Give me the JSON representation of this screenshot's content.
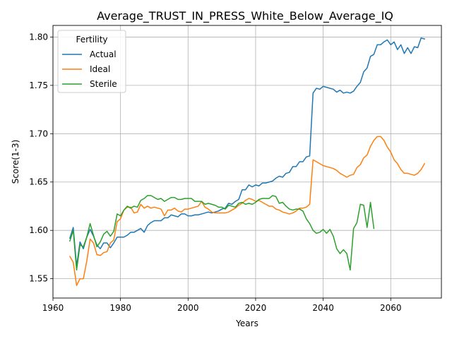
{
  "chart_data": {
    "type": "line",
    "title": "Average_TRUST_IN_PRESS_White_Below_Average_IQ",
    "xlabel": "Years",
    "ylabel": "Score(1-3)",
    "xlim": [
      1960,
      2075
    ],
    "ylim": [
      1.53,
      1.812
    ],
    "xticks": [
      1960,
      1980,
      2000,
      2020,
      2040,
      2060
    ],
    "yticks": [
      1.55,
      1.6,
      1.65,
      1.7,
      1.75,
      1.8
    ],
    "ytick_labels": [
      "1.55",
      "1.60",
      "1.65",
      "1.70",
      "1.75",
      "1.80"
    ],
    "grid": true,
    "legend": {
      "title": "Fertility",
      "placement": "top-left"
    },
    "series": [
      {
        "name": "Actual",
        "color": "#1f77b4",
        "x": [
          1965,
          1966,
          1967,
          1968,
          1969,
          1970,
          1971,
          1972,
          1973,
          1974,
          1975,
          1976,
          1977,
          1978,
          1979,
          1980,
          1981,
          1982,
          1983,
          1984,
          1985,
          1986,
          1987,
          1988,
          1989,
          1990,
          1991,
          1992,
          1993,
          1994,
          1995,
          1996,
          1997,
          1998,
          1999,
          2000,
          2001,
          2002,
          2003,
          2004,
          2005,
          2006,
          2007,
          2008,
          2009,
          2010,
          2011,
          2012,
          2013,
          2014,
          2015,
          2016,
          2017,
          2018,
          2019,
          2020,
          2021,
          2022,
          2023,
          2024,
          2025,
          2026,
          2027,
          2028,
          2029,
          2030,
          2031,
          2032,
          2033,
          2034,
          2035,
          2036,
          2037,
          2038,
          2039,
          2040,
          2041,
          2042,
          2043,
          2044,
          2045,
          2046,
          2047,
          2048,
          2049,
          2050,
          2051,
          2052,
          2053,
          2054,
          2055,
          2056,
          2057,
          2058,
          2059,
          2060,
          2061,
          2062,
          2063,
          2064,
          2065,
          2066,
          2067,
          2068,
          2069,
          2070
        ],
        "y": [
          1.592,
          1.603,
          1.563,
          1.588,
          1.581,
          1.593,
          1.601,
          1.594,
          1.585,
          1.581,
          1.587,
          1.587,
          1.582,
          1.587,
          1.593,
          1.593,
          1.593,
          1.595,
          1.598,
          1.598,
          1.6,
          1.602,
          1.598,
          1.605,
          1.608,
          1.61,
          1.61,
          1.61,
          1.613,
          1.613,
          1.616,
          1.615,
          1.614,
          1.617,
          1.617,
          1.615,
          1.615,
          1.616,
          1.616,
          1.617,
          1.618,
          1.619,
          1.618,
          1.619,
          1.62,
          1.622,
          1.623,
          1.628,
          1.627,
          1.63,
          1.632,
          1.642,
          1.642,
          1.647,
          1.645,
          1.647,
          1.646,
          1.649,
          1.649,
          1.65,
          1.651,
          1.654,
          1.656,
          1.655,
          1.659,
          1.66,
          1.666,
          1.666,
          1.671,
          1.671,
          1.676,
          1.677,
          1.742,
          1.747,
          1.746,
          1.749,
          1.748,
          1.747,
          1.746,
          1.743,
          1.745,
          1.742,
          1.743,
          1.742,
          1.744,
          1.749,
          1.753,
          1.764,
          1.768,
          1.78,
          1.782,
          1.792,
          1.792,
          1.795,
          1.797,
          1.792,
          1.795,
          1.787,
          1.792,
          1.783,
          1.789,
          1.783,
          1.79,
          1.789,
          1.799,
          1.798
        ]
      },
      {
        "name": "Ideal",
        "color": "#ff7f0e",
        "x": [
          1965,
          1966,
          1967,
          1968,
          1969,
          1970,
          1971,
          1972,
          1973,
          1974,
          1975,
          1976,
          1977,
          1978,
          1979,
          1980,
          1981,
          1982,
          1983,
          1984,
          1985,
          1986,
          1987,
          1988,
          1989,
          1990,
          1991,
          1992,
          1993,
          1994,
          1995,
          1996,
          1997,
          1998,
          1999,
          2000,
          2001,
          2002,
          2003,
          2004,
          2005,
          2006,
          2007,
          2008,
          2009,
          2010,
          2011,
          2012,
          2013,
          2014,
          2015,
          2016,
          2017,
          2018,
          2019,
          2020,
          2021,
          2022,
          2023,
          2024,
          2025,
          2026,
          2027,
          2028,
          2029,
          2030,
          2031,
          2032,
          2033,
          2034,
          2035,
          2036,
          2037,
          2038,
          2039,
          2040,
          2041,
          2042,
          2043,
          2044,
          2045,
          2046,
          2047,
          2048,
          2049,
          2050,
          2051,
          2052,
          2053,
          2054,
          2055,
          2056,
          2057,
          2058,
          2059,
          2060,
          2061,
          2062,
          2063,
          2064,
          2065,
          2066,
          2067,
          2068,
          2069,
          2070
        ],
        "y": [
          1.573,
          1.567,
          1.543,
          1.55,
          1.55,
          1.568,
          1.591,
          1.587,
          1.575,
          1.574,
          1.577,
          1.578,
          1.587,
          1.59,
          1.609,
          1.612,
          1.621,
          1.624,
          1.624,
          1.618,
          1.619,
          1.627,
          1.623,
          1.625,
          1.623,
          1.624,
          1.623,
          1.622,
          1.615,
          1.621,
          1.621,
          1.623,
          1.62,
          1.619,
          1.622,
          1.622,
          1.623,
          1.624,
          1.625,
          1.63,
          1.624,
          1.622,
          1.619,
          1.618,
          1.618,
          1.618,
          1.618,
          1.619,
          1.621,
          1.623,
          1.626,
          1.628,
          1.631,
          1.633,
          1.632,
          1.63,
          1.631,
          1.629,
          1.627,
          1.625,
          1.625,
          1.622,
          1.621,
          1.619,
          1.618,
          1.617,
          1.618,
          1.62,
          1.623,
          1.623,
          1.624,
          1.627,
          1.673,
          1.671,
          1.669,
          1.667,
          1.666,
          1.665,
          1.664,
          1.662,
          1.659,
          1.657,
          1.655,
          1.657,
          1.658,
          1.665,
          1.668,
          1.675,
          1.678,
          1.687,
          1.693,
          1.697,
          1.697,
          1.693,
          1.686,
          1.681,
          1.673,
          1.669,
          1.663,
          1.659,
          1.659,
          1.658,
          1.657,
          1.659,
          1.663,
          1.669
        ]
      },
      {
        "name": "Sterile",
        "color": "#2ca02c",
        "x": [
          1965,
          1966,
          1967,
          1968,
          1969,
          1970,
          1971,
          1972,
          1973,
          1974,
          1975,
          1976,
          1977,
          1978,
          1979,
          1980,
          1981,
          1982,
          1983,
          1984,
          1985,
          1986,
          1987,
          1988,
          1989,
          1990,
          1991,
          1992,
          1993,
          1994,
          1995,
          1996,
          1997,
          1998,
          1999,
          2000,
          2001,
          2002,
          2003,
          2004,
          2005,
          2006,
          2007,
          2008,
          2009,
          2010,
          2011,
          2012,
          2013,
          2014,
          2015,
          2016,
          2017,
          2018,
          2019,
          2020,
          2021,
          2022,
          2023,
          2024,
          2025,
          2026,
          2027,
          2028,
          2029,
          2030,
          2031,
          2032,
          2033,
          2034,
          2035,
          2036,
          2037,
          2038,
          2039,
          2040,
          2041,
          2042,
          2043,
          2044,
          2045,
          2046,
          2047,
          2048,
          2049,
          2050,
          2051,
          2052,
          2053,
          2054,
          2055
        ],
        "y": [
          1.589,
          1.6,
          1.559,
          1.585,
          1.583,
          1.593,
          1.607,
          1.595,
          1.583,
          1.588,
          1.596,
          1.599,
          1.594,
          1.599,
          1.617,
          1.615,
          1.621,
          1.625,
          1.623,
          1.625,
          1.624,
          1.631,
          1.633,
          1.636,
          1.636,
          1.634,
          1.632,
          1.633,
          1.63,
          1.632,
          1.634,
          1.634,
          1.632,
          1.632,
          1.633,
          1.633,
          1.633,
          1.63,
          1.63,
          1.63,
          1.627,
          1.628,
          1.627,
          1.626,
          1.624,
          1.624,
          1.622,
          1.626,
          1.625,
          1.624,
          1.628,
          1.629,
          1.627,
          1.628,
          1.627,
          1.629,
          1.632,
          1.633,
          1.633,
          1.633,
          1.636,
          1.635,
          1.628,
          1.629,
          1.625,
          1.622,
          1.621,
          1.622,
          1.622,
          1.62,
          1.612,
          1.607,
          1.6,
          1.597,
          1.598,
          1.601,
          1.597,
          1.601,
          1.594,
          1.581,
          1.576,
          1.58,
          1.576,
          1.559,
          1.602,
          1.608,
          1.627,
          1.626,
          1.603,
          1.629,
          1.602
        ]
      }
    ]
  }
}
